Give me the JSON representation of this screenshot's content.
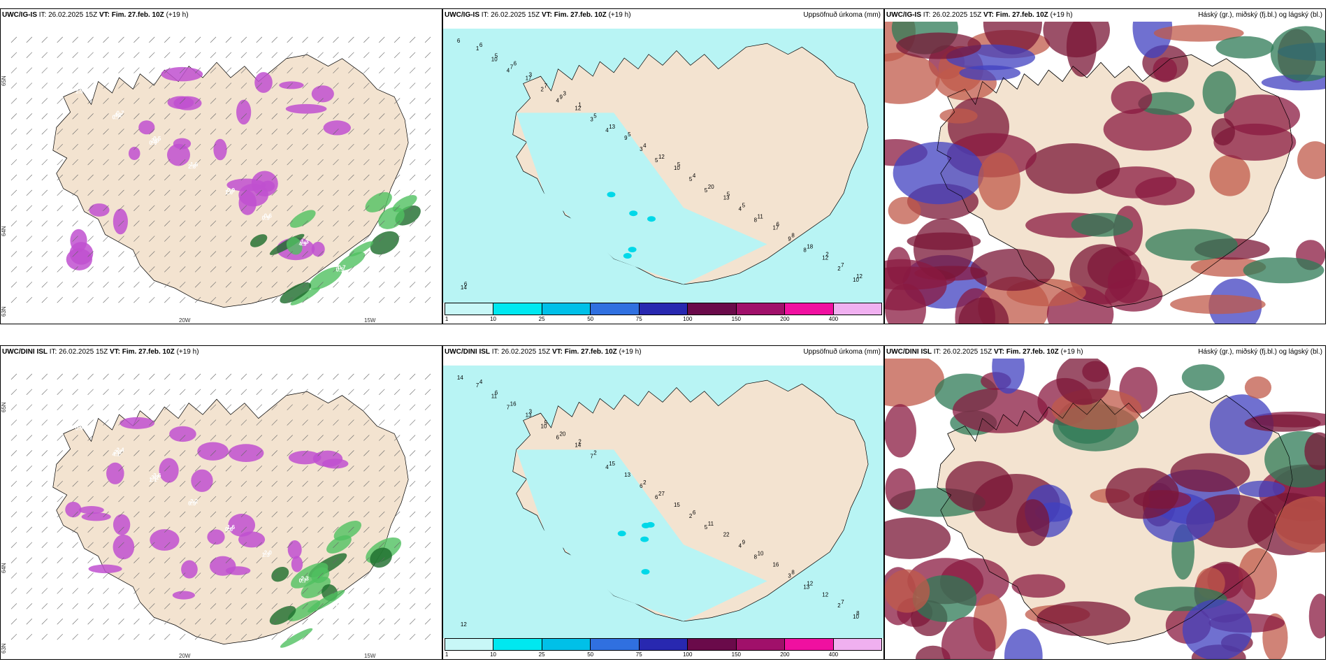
{
  "rows": [
    {
      "model": "UWC/IG-IS",
      "it_label": "IT:",
      "it_value": "26.02.2025 15Z",
      "vt_label": "VT: Fim. 27.feb. 10Z",
      "lead": "(+19 h)",
      "wind_lon_labels": [
        "20W",
        "15W"
      ],
      "wind_lat_labels": [
        "65N",
        "64N",
        "63N"
      ],
      "precip_title": "Uppsöfnuð úrkoma (mm)",
      "cloud_title": "Háský (gr.), miðský (fj.bl.) og lágský (bl.)",
      "precip_numbers": [
        "6",
        "4",
        "4",
        "4",
        "5",
        "5",
        "8",
        "8",
        "10",
        "10",
        "2",
        "3",
        "3",
        "5",
        "4",
        "9",
        "2",
        "1",
        "17",
        "12",
        "9",
        "10",
        "13",
        "17",
        "12",
        "14",
        "7",
        "9",
        "13",
        "12",
        "20",
        "11",
        "18",
        "12",
        "5",
        "7",
        "5",
        "4",
        "4",
        "5",
        "8",
        "7",
        "6",
        "3",
        "1",
        "5",
        "5",
        "5",
        "6",
        "2",
        "6",
        "6",
        "3"
      ],
      "wind_numbers": [
        "1.3",
        "2.4",
        "0.7",
        "0.5",
        "1.6",
        "0.9",
        "0.6",
        "1.3",
        "0.7",
        "2.6",
        "5.3",
        "4.2",
        "2.0",
        "2.8",
        "1.6",
        "0.9",
        "4.9",
        "0.5",
        "2.2",
        "1.3",
        "0.7",
        "0.9"
      ]
    },
    {
      "model": "UWC/DINI ISL",
      "it_label": "IT:",
      "it_value": "26.02.2025 15Z",
      "vt_label": "VT: Fim. 27.feb. 10Z",
      "lead": "(+19 h)",
      "wind_lon_labels": [
        "20W",
        "15W"
      ],
      "wind_lat_labels": [
        "65N",
        "64N",
        "63N"
      ],
      "precip_title": "Uppsöfnuð úrkoma (mm)",
      "cloud_title": "Háský (gr.), miðský (fj.bl.) og lágský (bl.)",
      "precip_numbers": [
        "14",
        "7",
        "6",
        "4",
        "6",
        "5",
        "8",
        "13",
        "10",
        "11",
        "10",
        "7",
        "6",
        "2",
        "4",
        "3",
        "2",
        "7",
        "13",
        "14",
        "13",
        "15",
        "22",
        "16",
        "12",
        "12",
        "16",
        "20",
        "15",
        "27",
        "11",
        "10",
        "12",
        "8",
        "6",
        "5",
        "2",
        "2",
        "6",
        "9",
        "8",
        "7",
        "4",
        "3",
        "2"
      ],
      "wind_numbers": [
        "0.5",
        "1.5",
        "2.4",
        "3.6",
        "2.2",
        "1.6",
        "2.0",
        "2.3",
        "2.0",
        "0.8",
        "0.7",
        "2.2",
        "3.2",
        "6.5",
        "0.6",
        "1.3",
        "0.7",
        "0.8",
        "0.5",
        "0.9",
        "4.1",
        "1.1"
      ]
    }
  ],
  "colorbar": {
    "colors": [
      "#c8f7f7",
      "#00e8f0",
      "#00c0e8",
      "#3070e0",
      "#2828b0",
      "#6a0a4a",
      "#a0106a",
      "#f010a0",
      "#f0b0f0"
    ],
    "ticks": [
      "1",
      "10",
      "25",
      "50",
      "75",
      "100",
      "150",
      "200",
      "400"
    ]
  },
  "colors": {
    "land": "#f3e3d0",
    "precip_light": "#b8f4f4",
    "wind_magenta": "#c050d0",
    "wind_green": "#50c060",
    "cloud_high": "#2d7a55",
    "cloud_mid": "#8a1a40",
    "cloud_low": "#4040c0"
  }
}
